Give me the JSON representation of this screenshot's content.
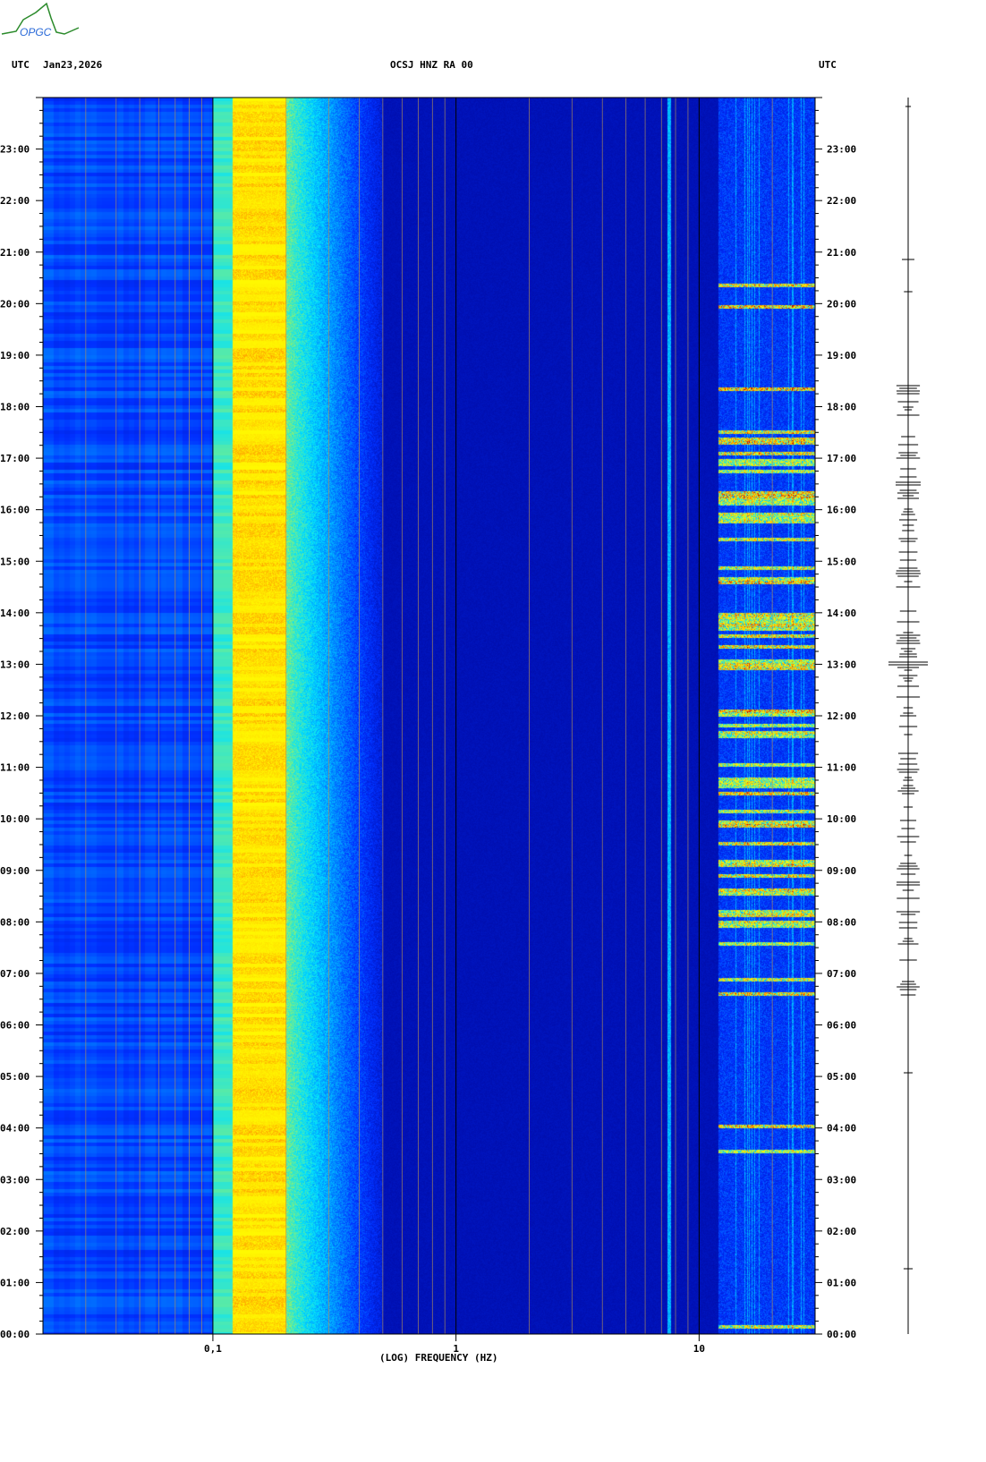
{
  "logo_text": "OPGC",
  "header": {
    "left_tz": "UTC",
    "date": "Jan23,2026",
    "station": "OCSJ HNZ RA 00",
    "right_tz": "UTC"
  },
  "chart_data": {
    "type": "heatmap",
    "title": "OCSJ HNZ RA 00",
    "xlabel": "(LOG) FREQUENCY (HZ)",
    "ylabel": "",
    "x_scale": "log",
    "xlim": [
      0.02,
      30
    ],
    "x_ticks": [
      {
        "value": 0.1,
        "label": "0,1"
      },
      {
        "value": 1,
        "label": "1"
      },
      {
        "value": 10,
        "label": "10"
      }
    ],
    "ylim": [
      "00:00",
      "24:00"
    ],
    "y_ticks": [
      "00:00",
      "01:00",
      "02:00",
      "03:00",
      "04:00",
      "05:00",
      "06:00",
      "07:00",
      "08:00",
      "09:00",
      "10:00",
      "11:00",
      "12:00",
      "13:00",
      "14:00",
      "15:00",
      "16:00",
      "17:00",
      "18:00",
      "19:00",
      "20:00",
      "21:00",
      "22:00",
      "23:00"
    ],
    "colormap": [
      "#00008c",
      "#0030ff",
      "#00e0ff",
      "#ffff00",
      "#ff8000",
      "#b00000"
    ],
    "features": {
      "microseism_band_hz": [
        0.12,
        0.2
      ],
      "persistent_line_hz": 7.5,
      "high_frequency_activity_utc": [
        "06:30",
        "18:30"
      ]
    }
  }
}
